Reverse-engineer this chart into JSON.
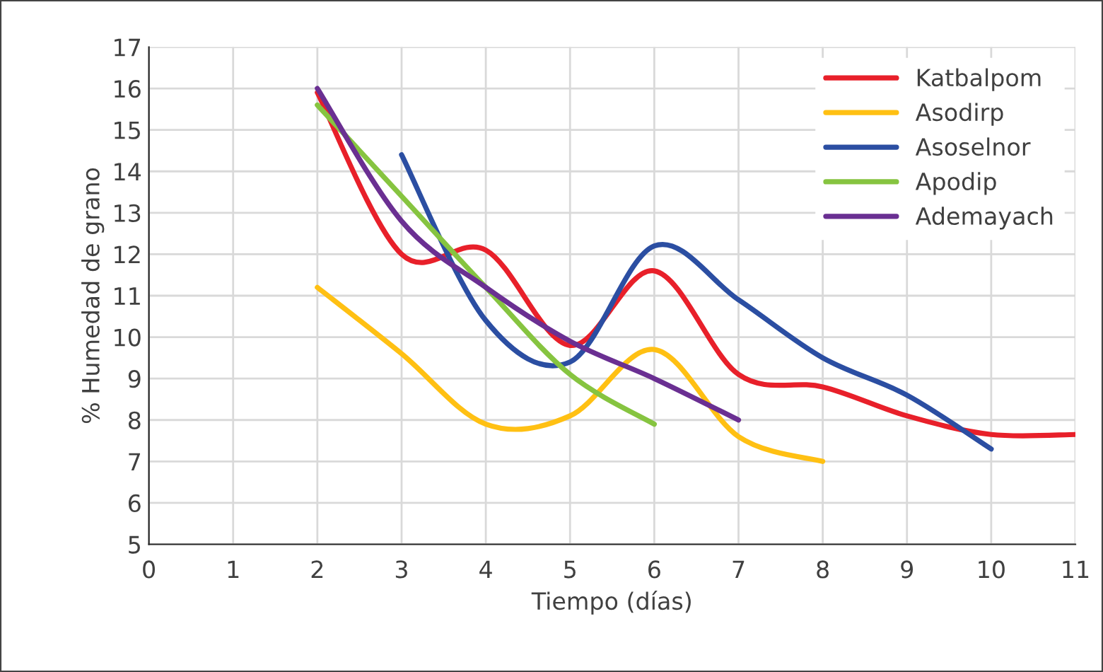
{
  "chart_data": {
    "type": "line",
    "xlabel": "Tiempo (días)",
    "ylabel": "% Humedad de grano",
    "xlim": [
      0,
      11
    ],
    "xticks": [
      0,
      1,
      2,
      3,
      4,
      5,
      6,
      7,
      8,
      9,
      10,
      11
    ],
    "ylim": [
      5,
      17
    ],
    "yticks": [
      5,
      6,
      7,
      8,
      9,
      10,
      11,
      12,
      13,
      14,
      15,
      16,
      17
    ],
    "grid": true,
    "legend": "top right",
    "marker": "none",
    "line_style": "solid",
    "series": [
      {
        "name": "Katbalpom",
        "color": "#e8202a",
        "x": [
          2,
          3,
          4,
          5,
          6,
          7,
          8,
          9,
          10,
          11
        ],
        "values": [
          15.9,
          12.0,
          12.1,
          9.8,
          11.6,
          9.1,
          8.8,
          8.1,
          7.65,
          7.65
        ]
      },
      {
        "name": "Asodirp",
        "color": "#ffc013",
        "x": [
          2,
          3,
          4,
          5,
          6,
          7,
          8
        ],
        "values": [
          11.2,
          9.6,
          7.9,
          8.1,
          9.7,
          7.6,
          7.0
        ]
      },
      {
        "name": "Asoselnor",
        "color": "#2b4ea2",
        "x": [
          3,
          4,
          5,
          6,
          7,
          8,
          9,
          10
        ],
        "values": [
          14.4,
          10.4,
          9.4,
          12.2,
          10.9,
          9.5,
          8.6,
          7.3
        ]
      },
      {
        "name": "Apodip",
        "color": "#86c440",
        "x": [
          2,
          3,
          4,
          5,
          6
        ],
        "values": [
          15.6,
          13.4,
          11.2,
          9.1,
          7.9
        ]
      },
      {
        "name": "Ademayach",
        "color": "#6a2f92",
        "x": [
          2,
          3,
          4,
          5,
          6,
          7
        ],
        "values": [
          16.0,
          12.8,
          11.2,
          9.9,
          9.0,
          8.0
        ]
      }
    ]
  }
}
